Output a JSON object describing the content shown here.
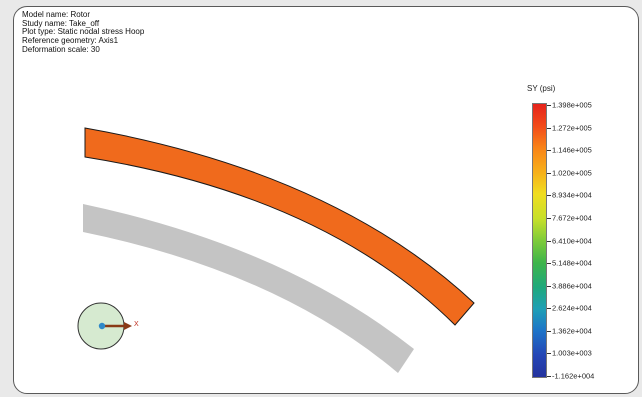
{
  "info": {
    "model_name": "Model name: Rotor",
    "study_name": "Study name: Take_off",
    "plot_type": "Plot type: Static nodal stress Hoop",
    "reference_geometry": "Reference geometry: Axis1",
    "deformation_scale": "Deformation scale: 30"
  },
  "legend": {
    "title": "SY (psi)",
    "labels": [
      "1.398e+005",
      "1.272e+005",
      "1.146e+005",
      "1.020e+005",
      "8.934e+004",
      "7.672e+004",
      "6.410e+004",
      "5.148e+004",
      "3.886e+004",
      "2.624e+004",
      "1.362e+004",
      "1.003e+003",
      "-1.162e+004"
    ]
  },
  "colors": {
    "undeformed_shape": "#c4c4c4",
    "deformed_shape_inner": "#f06a1c",
    "deformed_shape_outer": "#e2301a",
    "triad_disc": "#d6ead0",
    "triad_x_arrow": "#8a3a16",
    "triad_y_dot": "#2f88c8"
  },
  "triad": {
    "axis_label": "X"
  }
}
